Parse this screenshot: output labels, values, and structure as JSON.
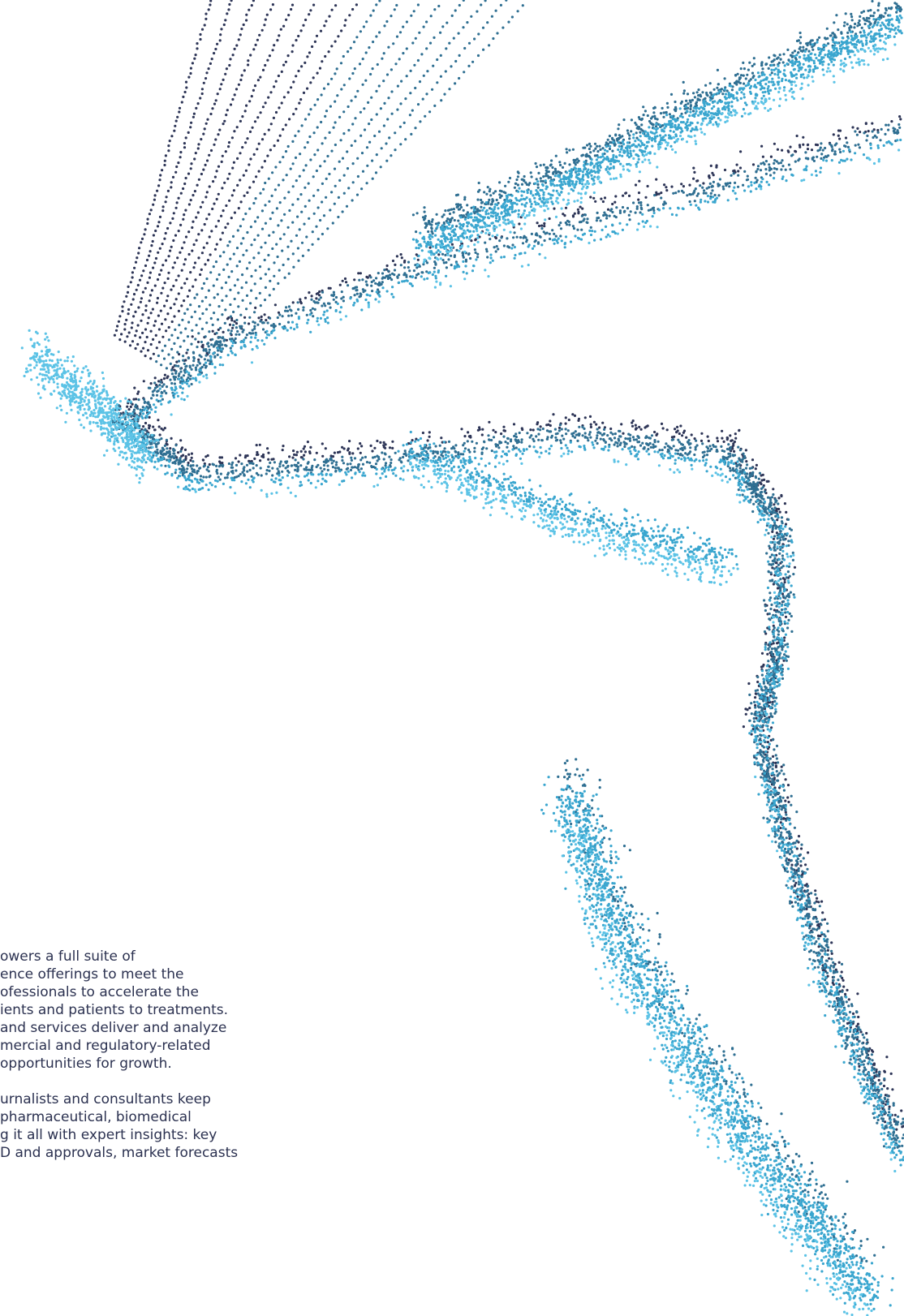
{
  "paragraphs": [
    {
      "lines": [
        "owers a full suite of",
        "ence offerings to meet the",
        "ofessionals to accelerate the",
        "ients and patients to treatments.",
        "and services deliver and analyze",
        "mercial and regulatory-related",
        "opportunities for growth."
      ]
    },
    {
      "lines": [
        "urnalists and consultants keep",
        "pharmaceutical, biomedical",
        "g it all with expert insights: key",
        "D and approvals, market forecasts"
      ]
    }
  ]
}
